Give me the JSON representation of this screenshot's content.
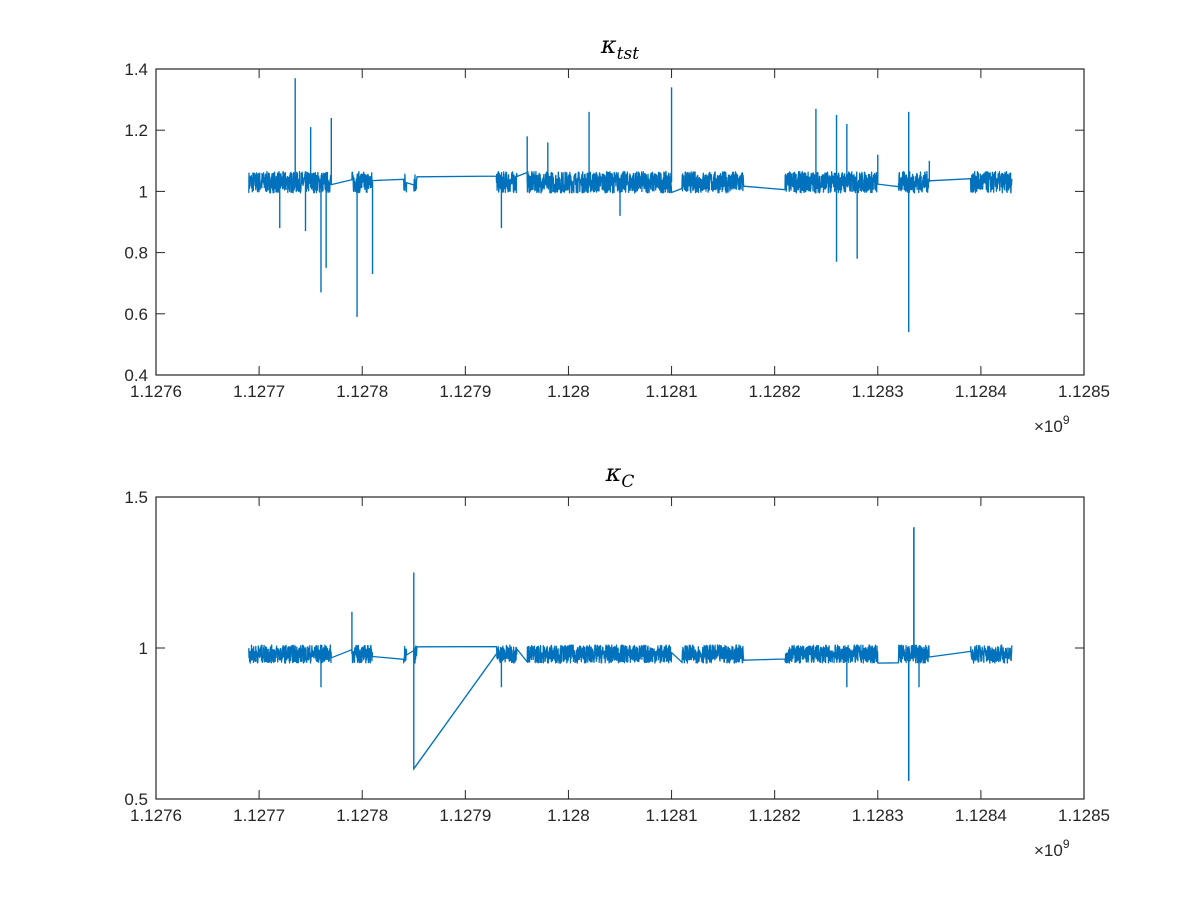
{
  "chart_data": [
    {
      "type": "line",
      "title_base": "κ",
      "title_sub": "tst",
      "xlabel": "",
      "ylabel": "",
      "xlim": [
        1.1276,
        1.1285
      ],
      "ylim": [
        0.4,
        1.4
      ],
      "x_ticks": [
        "1.1276",
        "1.1277",
        "1.1278",
        "1.1279",
        "1.128",
        "1.1281",
        "1.1282",
        "1.1283",
        "1.1284",
        "1.1285"
      ],
      "y_ticks": [
        "0.4",
        "0.6",
        "0.8",
        "1",
        "1.2",
        "1.4"
      ],
      "x_exponent_base": "×10",
      "x_exponent_power": "9",
      "color": "#0072BD",
      "grid": false,
      "baseline": 1.03,
      "noise_amplitude": 0.035,
      "segments": [
        [
          1.12769,
          1.12774
        ],
        [
          1.12774,
          1.12777
        ],
        [
          1.12779,
          1.12781
        ],
        [
          1.12784,
          1.12784
        ],
        [
          1.12785,
          1.12785
        ],
        [
          1.12793,
          1.12795
        ],
        [
          1.12796,
          1.128
        ],
        [
          1.128,
          1.12803
        ],
        [
          1.12803,
          1.1281
        ],
        [
          1.12811,
          1.12817
        ],
        [
          1.12821,
          1.1283
        ],
        [
          1.12832,
          1.12835
        ],
        [
          1.12839,
          1.12843
        ]
      ],
      "spikes": [
        {
          "x": 1.127735,
          "y": 1.37
        },
        {
          "x": 1.12775,
          "y": 1.21
        },
        {
          "x": 1.12777,
          "y": 1.24
        },
        {
          "x": 1.12772,
          "y": 0.88
        },
        {
          "x": 1.127745,
          "y": 0.87
        },
        {
          "x": 1.12776,
          "y": 0.67
        },
        {
          "x": 1.127765,
          "y": 0.75
        },
        {
          "x": 1.127795,
          "y": 0.59
        },
        {
          "x": 1.12781,
          "y": 0.73
        },
        {
          "x": 1.12796,
          "y": 1.18
        },
        {
          "x": 1.12798,
          "y": 1.16
        },
        {
          "x": 1.12802,
          "y": 1.26
        },
        {
          "x": 1.1281,
          "y": 1.34
        },
        {
          "x": 1.12805,
          "y": 0.92
        },
        {
          "x": 1.127935,
          "y": 0.88
        },
        {
          "x": 1.12824,
          "y": 1.27
        },
        {
          "x": 1.12826,
          "y": 1.25
        },
        {
          "x": 1.12827,
          "y": 1.22
        },
        {
          "x": 1.12826,
          "y": 0.77
        },
        {
          "x": 1.12828,
          "y": 0.78
        },
        {
          "x": 1.12833,
          "y": 1.26
        },
        {
          "x": 1.12833,
          "y": 0.54
        },
        {
          "x": 1.1283,
          "y": 1.12
        },
        {
          "x": 1.12835,
          "y": 1.1
        }
      ]
    },
    {
      "type": "line",
      "title_base": "κ",
      "title_sub": "C",
      "xlabel": "",
      "ylabel": "",
      "xlim": [
        1.1276,
        1.1285
      ],
      "ylim": [
        0.5,
        1.5
      ],
      "x_ticks": [
        "1.1276",
        "1.1277",
        "1.1278",
        "1.1279",
        "1.128",
        "1.1281",
        "1.1282",
        "1.1283",
        "1.1284",
        "1.1285"
      ],
      "y_ticks": [
        "0.5",
        "1",
        "1.5"
      ],
      "x_exponent_base": "×10",
      "x_exponent_power": "9",
      "color": "#0072BD",
      "grid": false,
      "baseline": 0.98,
      "noise_amplitude": 0.03,
      "segments": [
        [
          1.12769,
          1.12774
        ],
        [
          1.12774,
          1.12777
        ],
        [
          1.12779,
          1.12781
        ],
        [
          1.12784,
          1.12784
        ],
        [
          1.12785,
          1.12785
        ],
        [
          1.12793,
          1.12795
        ],
        [
          1.12796,
          1.128
        ],
        [
          1.128,
          1.12803
        ],
        [
          1.12803,
          1.1281
        ],
        [
          1.12811,
          1.12817
        ],
        [
          1.12821,
          1.1283
        ],
        [
          1.12832,
          1.12835
        ],
        [
          1.12839,
          1.12843
        ]
      ],
      "spikes": [
        {
          "x": 1.12779,
          "y": 1.12
        },
        {
          "x": 1.12776,
          "y": 0.87
        },
        {
          "x": 1.127935,
          "y": 0.87
        },
        {
          "x": 1.12827,
          "y": 0.87
        },
        {
          "x": 1.12834,
          "y": 0.87
        }
      ],
      "dip": [
        {
          "x": 1.12785,
          "y": 1.25
        },
        {
          "x": 1.12785,
          "y": 0.6
        },
        {
          "x": 1.12793,
          "y": 0.98
        }
      ],
      "extreme_spike": [
        {
          "x": 1.128335,
          "y": 1.4
        },
        {
          "x": 1.12833,
          "y": 0.56
        }
      ]
    }
  ]
}
